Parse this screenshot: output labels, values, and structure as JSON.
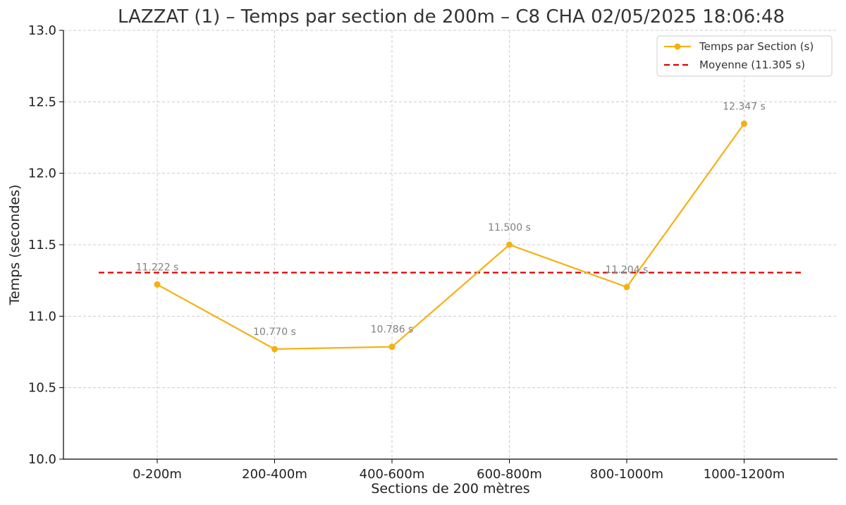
{
  "chart_data": {
    "type": "line",
    "title": "LAZZAT (1) – Temps par section de 200m – C8 CHA 02/05/2025 18:06:48",
    "xlabel": "Sections de 200 mètres",
    "ylabel": "Temps (secondes)",
    "categories": [
      "0-200m",
      "200-400m",
      "400-600m",
      "600-800m",
      "800-1000m",
      "1000-1200m"
    ],
    "ylim": [
      10.0,
      13.0
    ],
    "yticks": [
      "10.0",
      "10.5",
      "11.0",
      "11.5",
      "12.0",
      "12.5",
      "13.0"
    ],
    "grid": true,
    "legend_position": "top-right",
    "series": [
      {
        "name": "Temps par Section (s)",
        "values": [
          11.222,
          10.77,
          10.786,
          11.5,
          11.204,
          12.347
        ],
        "data_labels": [
          "11.222 s",
          "10.770 s",
          "10.786 s",
          "11.500 s",
          "11.204 s",
          "12.347 s"
        ],
        "color": "#f5b014",
        "style": "line-marker"
      },
      {
        "name": "Moyenne (11.305 s)",
        "value": 11.305,
        "color": "#e00000",
        "style": "dashed"
      }
    ]
  }
}
